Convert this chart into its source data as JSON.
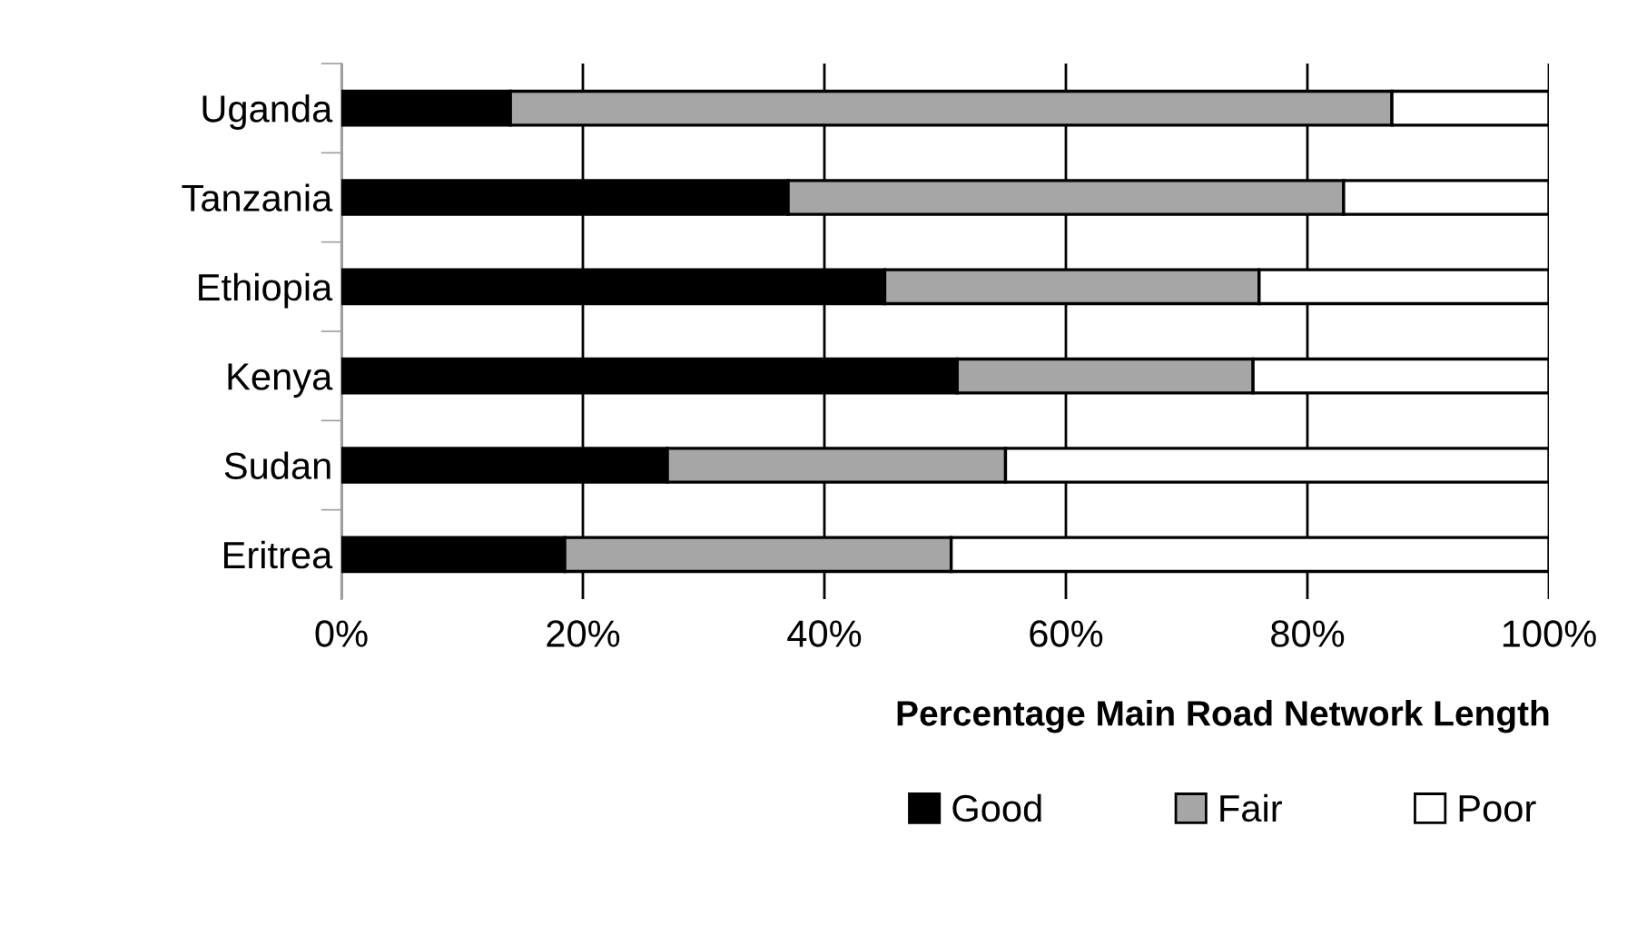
{
  "chart_data": {
    "type": "bar",
    "orientation": "horizontal",
    "stacked": true,
    "xlabel": "Percentage Main Road Network Length",
    "categories": [
      "Uganda",
      "Tanzania",
      "Ethiopia",
      "Kenya",
      "Sudan",
      "Eritrea"
    ],
    "series": [
      {
        "name": "Good",
        "color": "#000000",
        "values": [
          14,
          37,
          45,
          51,
          27,
          18.5
        ]
      },
      {
        "name": "Fair",
        "color": "#a6a6a6",
        "values": [
          73,
          46,
          31,
          24.5,
          28,
          32
        ]
      },
      {
        "name": "Poor",
        "color": "#ffffff",
        "values": [
          13,
          17,
          24,
          24.5,
          45,
          49.5
        ]
      }
    ],
    "xlim": [
      0,
      100
    ],
    "xticks": [
      {
        "value": 0,
        "label": "0%"
      },
      {
        "value": 20,
        "label": "20%"
      },
      {
        "value": 40,
        "label": "40%"
      },
      {
        "value": 60,
        "label": "60%"
      },
      {
        "value": 80,
        "label": "80%"
      },
      {
        "value": 100,
        "label": "100%"
      }
    ],
    "grid": "x",
    "legend": "bottom"
  }
}
